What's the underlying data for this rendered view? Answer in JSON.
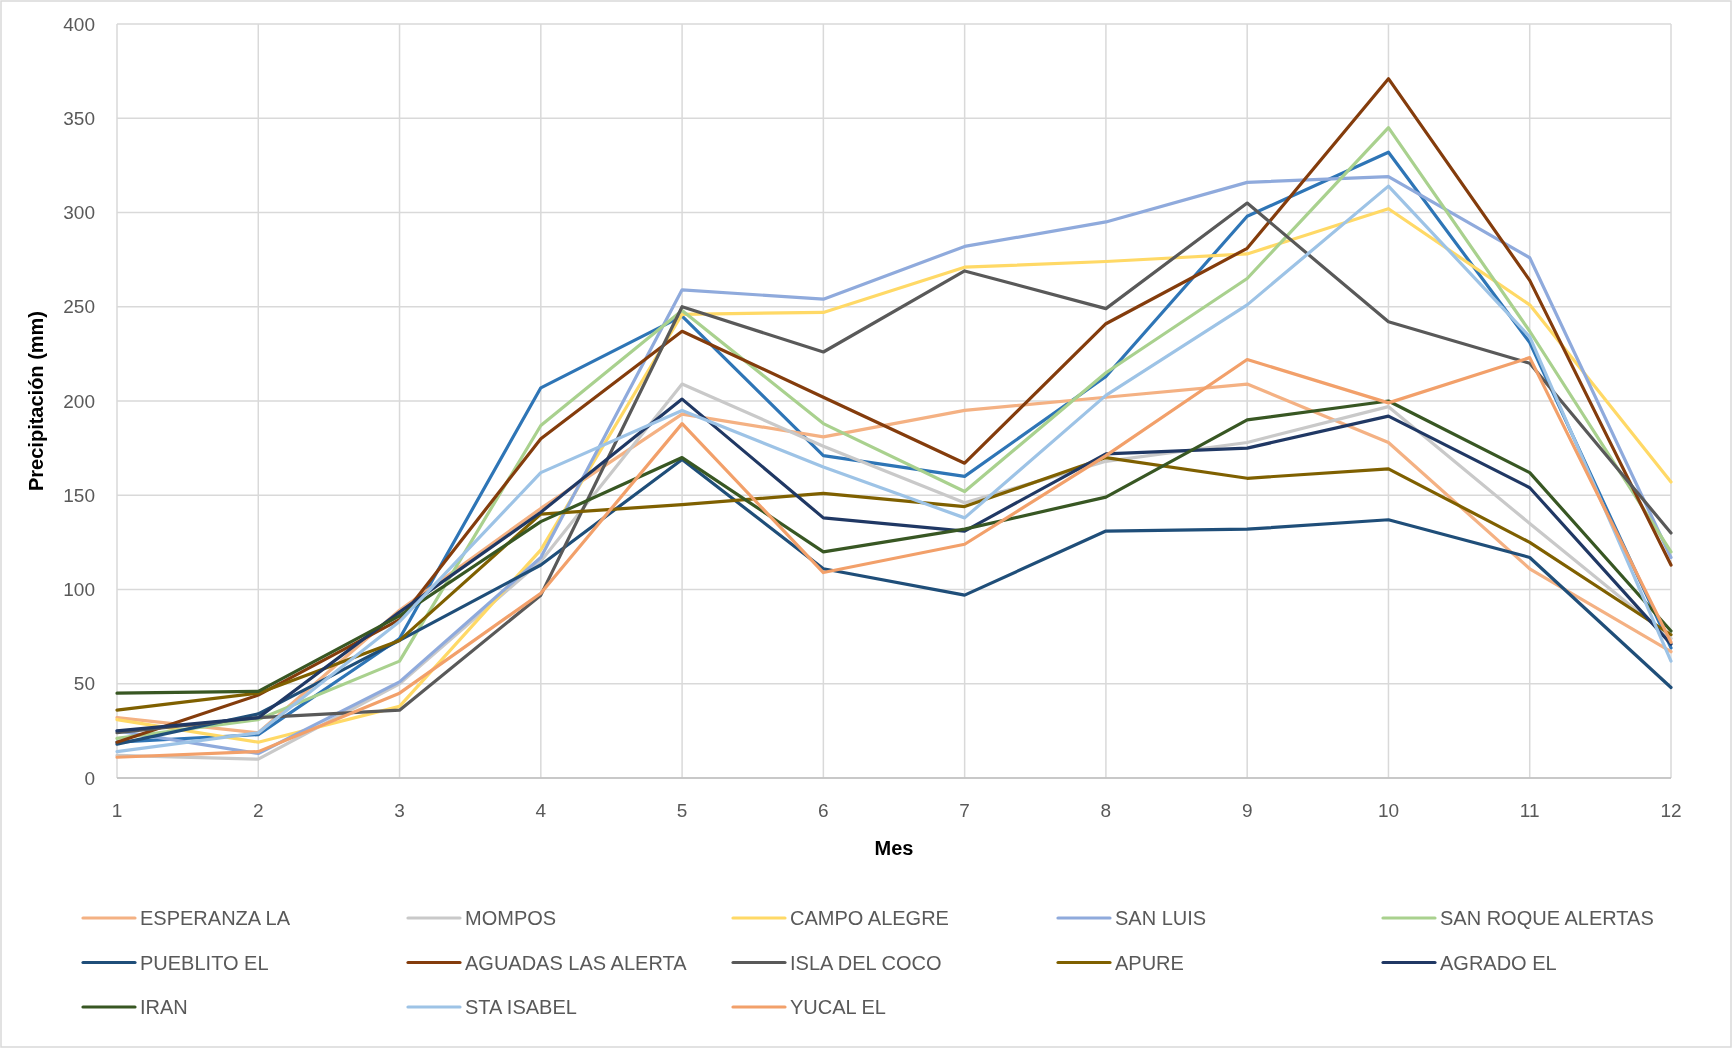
{
  "chart_data": {
    "type": "line",
    "xlabel": "Mes",
    "ylabel": "Precipitación (mm)",
    "x": [
      1,
      2,
      3,
      4,
      5,
      6,
      7,
      8,
      9,
      10,
      11,
      12
    ],
    "xlim": [
      1,
      12
    ],
    "xticks": [
      1,
      2,
      3,
      4,
      5,
      6,
      7,
      8,
      9,
      10,
      11,
      12
    ],
    "ylim": [
      0,
      400
    ],
    "yticks": [
      0,
      50,
      100,
      150,
      200,
      250,
      300,
      350,
      400
    ],
    "grid": true,
    "legend": "bottom",
    "line_style": "solid",
    "series": [
      {
        "color": "#2e75b6",
        "values": [
          19,
          23,
          74,
          207,
          245,
          171,
          160,
          213,
          298,
          332,
          231,
          69
        ]
      },
      {
        "name": "ESPERANZA LA",
        "color": "#f4b183",
        "values": [
          32,
          24,
          89,
          143,
          193,
          181,
          195,
          202,
          209,
          178,
          111,
          67
        ]
      },
      {
        "name": "MOMPOS",
        "color": "#c9c9c9",
        "values": [
          12,
          10,
          50,
          115,
          209,
          176,
          146,
          168,
          178,
          197,
          135,
          74
        ]
      },
      {
        "name": "CAMPO ALEGRE",
        "color": "#ffd966",
        "values": [
          31,
          19,
          38,
          121,
          246,
          247,
          271,
          274,
          278,
          302,
          251,
          157
        ]
      },
      {
        "name": "SAN LUIS",
        "color": "#8faadc",
        "values": [
          25,
          13,
          51,
          117,
          259,
          254,
          282,
          295,
          316,
          319,
          276,
          117
        ]
      },
      {
        "name": "SAN ROQUE ALERTAS",
        "color": "#a9d18e",
        "values": [
          21,
          31,
          62,
          187,
          248,
          188,
          152,
          215,
          265,
          345,
          237,
          120
        ]
      },
      {
        "name": "PUEBLITO EL",
        "color": "#1f4e79",
        "values": [
          18,
          34,
          73,
          113,
          169,
          111,
          97,
          131,
          132,
          137,
          117,
          48
        ]
      },
      {
        "name": "AGUADAS LAS ALERTA",
        "color": "#843c0c",
        "values": [
          19,
          44,
          84,
          180,
          237,
          202,
          167,
          241,
          281,
          371,
          264,
          113
        ]
      },
      {
        "name": "ISLA DEL COCO",
        "color": "#595959",
        "values": [
          24,
          32,
          36,
          97,
          250,
          226,
          269,
          249,
          305,
          242,
          220,
          130
        ]
      },
      {
        "name": "APURE",
        "color": "#7f6000",
        "values": [
          36,
          45,
          73,
          140,
          145,
          151,
          144,
          170,
          159,
          164,
          125,
          76
        ]
      },
      {
        "name": "AGRADO EL",
        "color": "#203864",
        "values": [
          25,
          32,
          88,
          141,
          201,
          138,
          131,
          172,
          175,
          192,
          154,
          71
        ]
      },
      {
        "name": "IRAN",
        "color": "#385723",
        "values": [
          45,
          46,
          86,
          136,
          170,
          120,
          132,
          149,
          190,
          200,
          162,
          78
        ]
      },
      {
        "name": "STA ISABEL",
        "color": "#9dc3e6",
        "values": [
          14,
          24,
          83,
          162,
          195,
          165,
          138,
          203,
          251,
          314,
          234,
          62
        ]
      },
      {
        "name": "YUCAL EL",
        "color": "#f2a06a",
        "values": [
          11,
          14,
          45,
          98,
          188,
          109,
          124,
          171,
          222,
          199,
          223,
          72
        ]
      }
    ]
  }
}
